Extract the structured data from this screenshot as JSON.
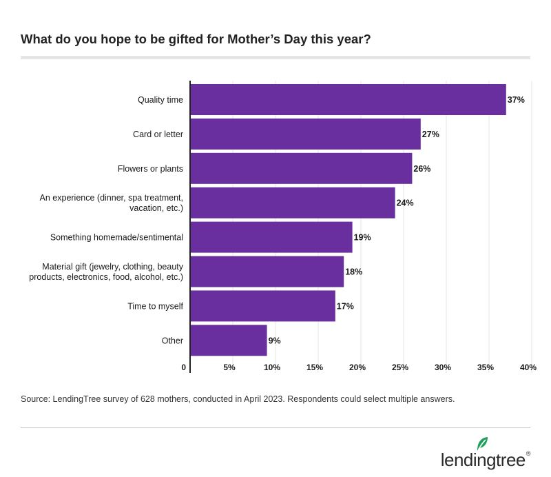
{
  "title": "What do you hope to be gifted for Mother’s Day this year?",
  "source": "Source: LendingTree survey of 628 mothers, conducted in April 2023. Respondents could select multiple answers.",
  "logo": {
    "text": "lendingtree",
    "reg": "®"
  },
  "colors": {
    "bar": "#6a2f9e",
    "grid": "#e5e5e5",
    "axis": "#222222",
    "logo_leaf": "#1f9e5c"
  },
  "chart_data": {
    "type": "bar",
    "orientation": "horizontal",
    "title": "What do you hope to be gifted for Mother’s Day this year?",
    "xlabel": "",
    "ylabel": "",
    "xlim": [
      0,
      42
    ],
    "grid": true,
    "ticks": [
      {
        "value": 0,
        "label": "0"
      },
      {
        "value": 5,
        "label": "5%"
      },
      {
        "value": 10,
        "label": "10%"
      },
      {
        "value": 15,
        "label": "15%"
      },
      {
        "value": 20,
        "label": "20%"
      },
      {
        "value": 25,
        "label": "25%"
      },
      {
        "value": 30,
        "label": "30%"
      },
      {
        "value": 35,
        "label": "35%"
      },
      {
        "value": 40,
        "label": "40%"
      }
    ],
    "categories": [
      [
        "Quality time"
      ],
      [
        "Card or letter"
      ],
      [
        "Flowers or plants"
      ],
      [
        "An experience (dinner, spa treatment,",
        "vacation, etc.)"
      ],
      [
        "Something homemade/sentimental"
      ],
      [
        "Material gift (jewelry, clothing, beauty",
        "products, electronics, food, alcohol, etc.)"
      ],
      [
        "Time to myself"
      ],
      [
        "Other"
      ]
    ],
    "values": [
      37,
      27,
      26,
      24,
      19,
      18,
      17,
      9
    ],
    "value_labels": [
      "37%",
      "27%",
      "26%",
      "24%",
      "19%",
      "18%",
      "17%",
      "9%"
    ]
  }
}
